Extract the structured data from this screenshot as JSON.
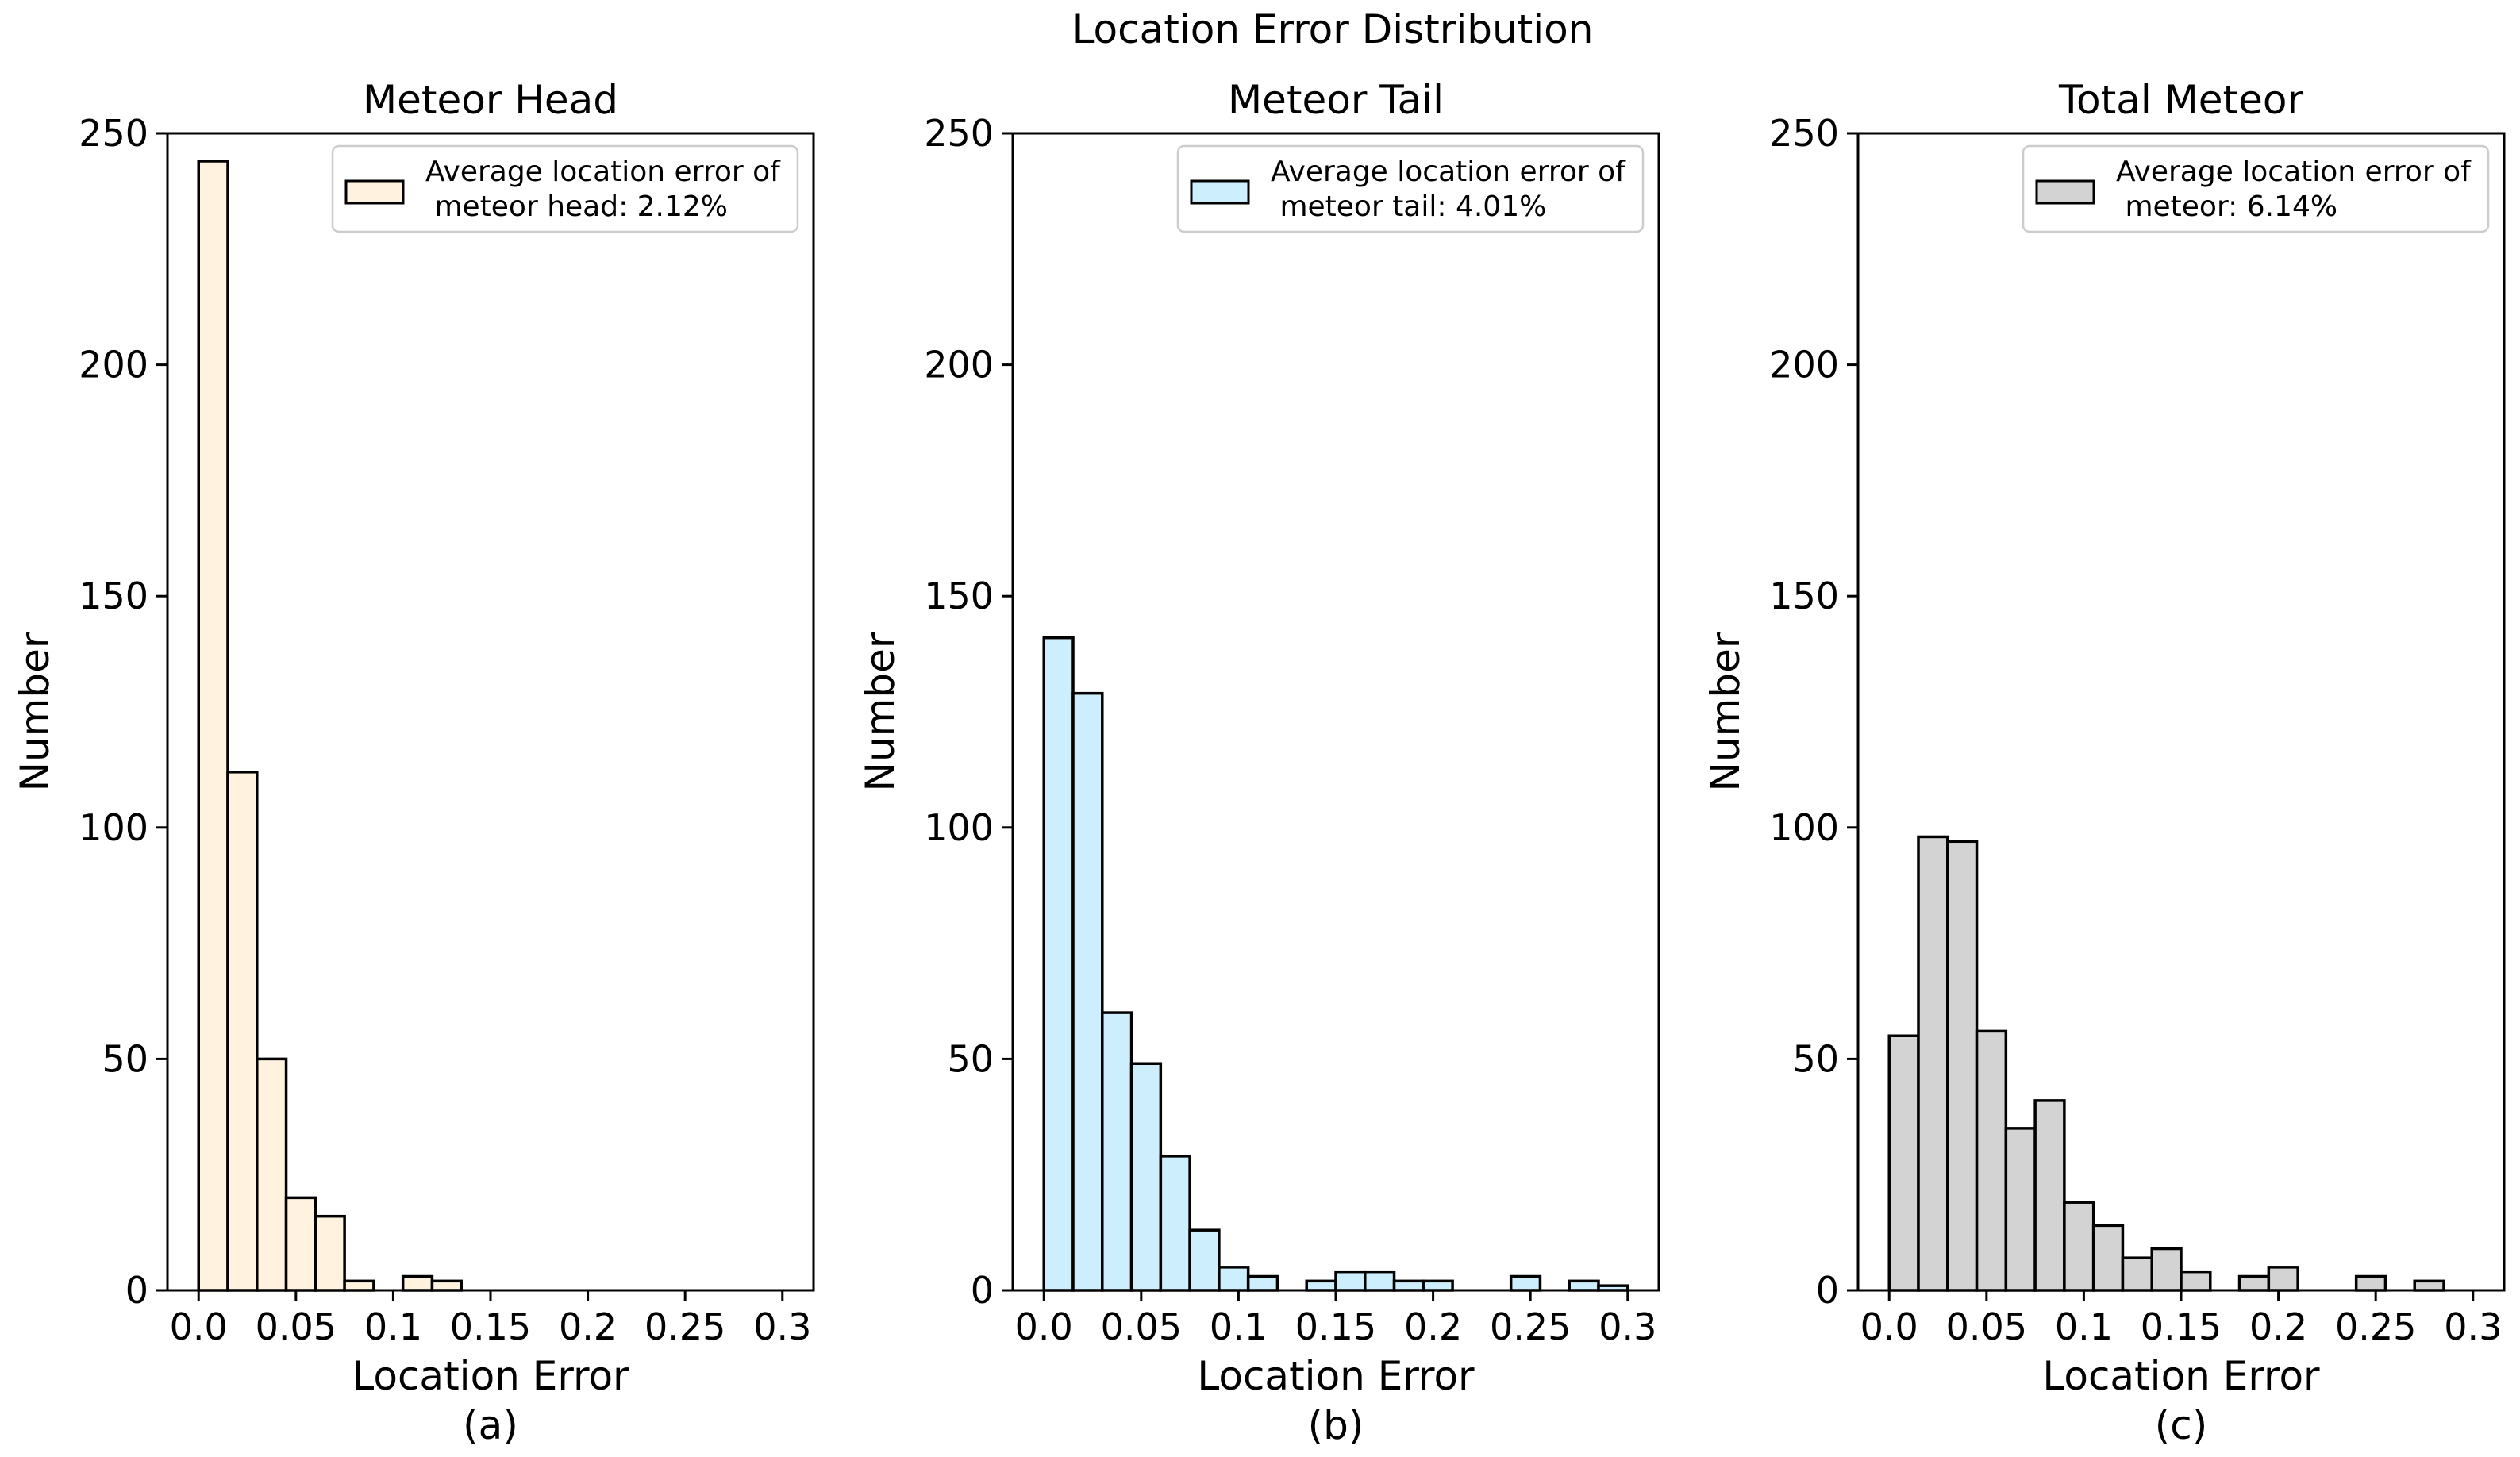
{
  "figure_title": "Location Error Distribution",
  "chart_data": [
    {
      "type": "bar",
      "title": "Meteor Head",
      "xlabel": "Location Error",
      "ylabel": "Number",
      "sublabel": "(a)",
      "xlim": [
        -0.016,
        0.316
      ],
      "ylim": [
        0,
        250
      ],
      "xticks": [
        0.0,
        0.05,
        0.1,
        0.15,
        0.2,
        0.25,
        0.3
      ],
      "xtick_labels": [
        "0.0",
        "0.05",
        "0.1",
        "0.15",
        "0.2",
        "0.25",
        "0.3"
      ],
      "yticks": [
        0,
        50,
        100,
        150,
        200,
        250
      ],
      "ytick_labels": [
        "0",
        "50",
        "100",
        "150",
        "200",
        "250"
      ],
      "bin_start": 0.0,
      "bin_width": 0.015,
      "values": [
        244,
        112,
        50,
        20,
        16,
        2,
        0,
        3,
        2,
        0,
        0,
        0,
        0,
        0,
        0,
        0,
        0,
        0,
        0,
        0
      ],
      "bar_color": "#fff3e0",
      "legend_lines": [
        "Average location error of",
        " meteor head: 2.12%"
      ],
      "legend_position": "upper right"
    },
    {
      "type": "bar",
      "title": "Meteor Tail",
      "xlabel": "Location Error",
      "ylabel": "Number",
      "sublabel": "(b)",
      "xlim": [
        -0.016,
        0.316
      ],
      "ylim": [
        0,
        250
      ],
      "xticks": [
        0.0,
        0.05,
        0.1,
        0.15,
        0.2,
        0.25,
        0.3
      ],
      "xtick_labels": [
        "0.0",
        "0.05",
        "0.1",
        "0.15",
        "0.2",
        "0.25",
        "0.3"
      ],
      "yticks": [
        0,
        50,
        100,
        150,
        200,
        250
      ],
      "ytick_labels": [
        "0",
        "50",
        "100",
        "150",
        "200",
        "250"
      ],
      "bin_start": 0.0,
      "bin_width": 0.015,
      "values": [
        141,
        129,
        60,
        49,
        29,
        13,
        5,
        3,
        0,
        2,
        4,
        4,
        2,
        2,
        0,
        0,
        3,
        0,
        2,
        1
      ],
      "bar_color": "#cdeefc",
      "legend_lines": [
        "Average location error of",
        " meteor tail: 4.01%"
      ],
      "legend_position": "upper right"
    },
    {
      "type": "bar",
      "title": "Total Meteor",
      "xlabel": "Location Error",
      "ylabel": "Number",
      "sublabel": "(c)",
      "xlim": [
        -0.016,
        0.316
      ],
      "ylim": [
        0,
        250
      ],
      "xticks": [
        0.0,
        0.05,
        0.1,
        0.15,
        0.2,
        0.25,
        0.3
      ],
      "xtick_labels": [
        "0.0",
        "0.05",
        "0.1",
        "0.15",
        "0.2",
        "0.25",
        "0.3"
      ],
      "yticks": [
        0,
        50,
        100,
        150,
        200,
        250
      ],
      "ytick_labels": [
        "0",
        "50",
        "100",
        "150",
        "200",
        "250"
      ],
      "bin_start": 0.0,
      "bin_width": 0.015,
      "values": [
        55,
        98,
        97,
        56,
        35,
        41,
        19,
        14,
        7,
        9,
        4,
        0,
        3,
        5,
        0,
        0,
        3,
        0,
        2,
        0
      ],
      "bar_color": "#d3d3d3",
      "legend_lines": [
        "Average location error of",
        " meteor: 6.14%"
      ],
      "legend_position": "upper right"
    }
  ]
}
